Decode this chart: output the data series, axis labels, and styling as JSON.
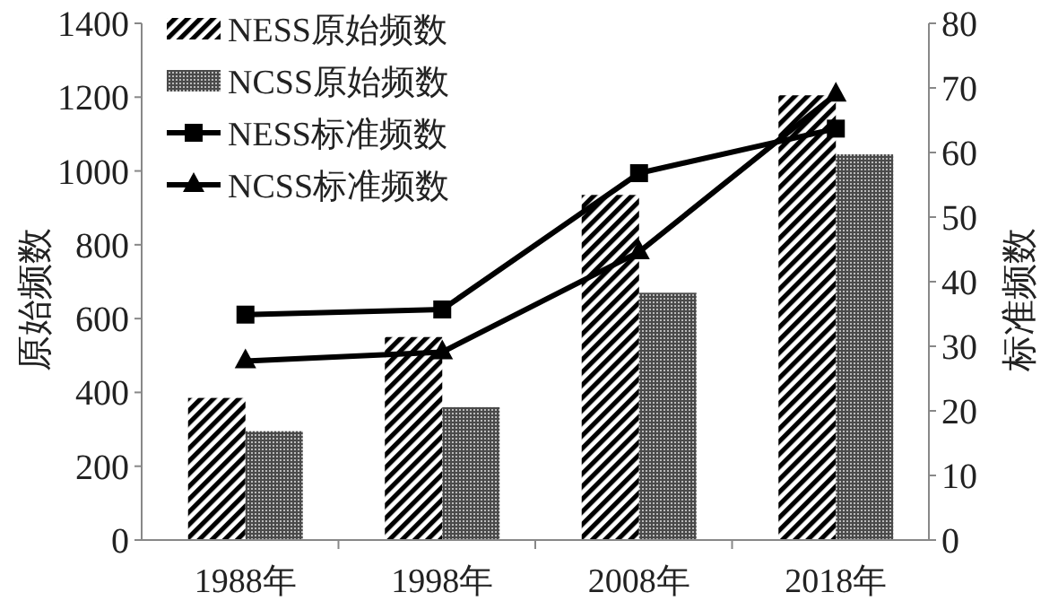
{
  "chart_data": {
    "type": "bar",
    "categories": [
      "1988年",
      "1998年",
      "2008年",
      "2018年"
    ],
    "ylabel": "原始频数",
    "y2label": "标准频数",
    "ylim": [
      0,
      1400
    ],
    "yticks": [
      0,
      200,
      400,
      600,
      800,
      1000,
      1200,
      1400
    ],
    "y2lim": [
      0,
      80
    ],
    "y2ticks": [
      0,
      10,
      20,
      30,
      40,
      50,
      60,
      70,
      80
    ],
    "legend": "top left",
    "series": [
      {
        "name": "NESS原始频数",
        "color": "#000000",
        "values": [
          385,
          550,
          935,
          1205
        ]
      },
      {
        "name": "NCSS原始频数",
        "color": "#4a4a4a",
        "values": [
          295,
          360,
          670,
          1045
        ]
      },
      {
        "name": "NESS标准频数",
        "type": "line",
        "axis": "y2",
        "marker": "square",
        "color": "#000000",
        "values": [
          34.9,
          35.7,
          56.8,
          63.7
        ]
      },
      {
        "name": "NCSS标准频数",
        "type": "line",
        "axis": "y2",
        "marker": "triangle",
        "color": "#000000",
        "values": [
          27.7,
          29.1,
          44.6,
          69.0
        ]
      }
    ]
  }
}
